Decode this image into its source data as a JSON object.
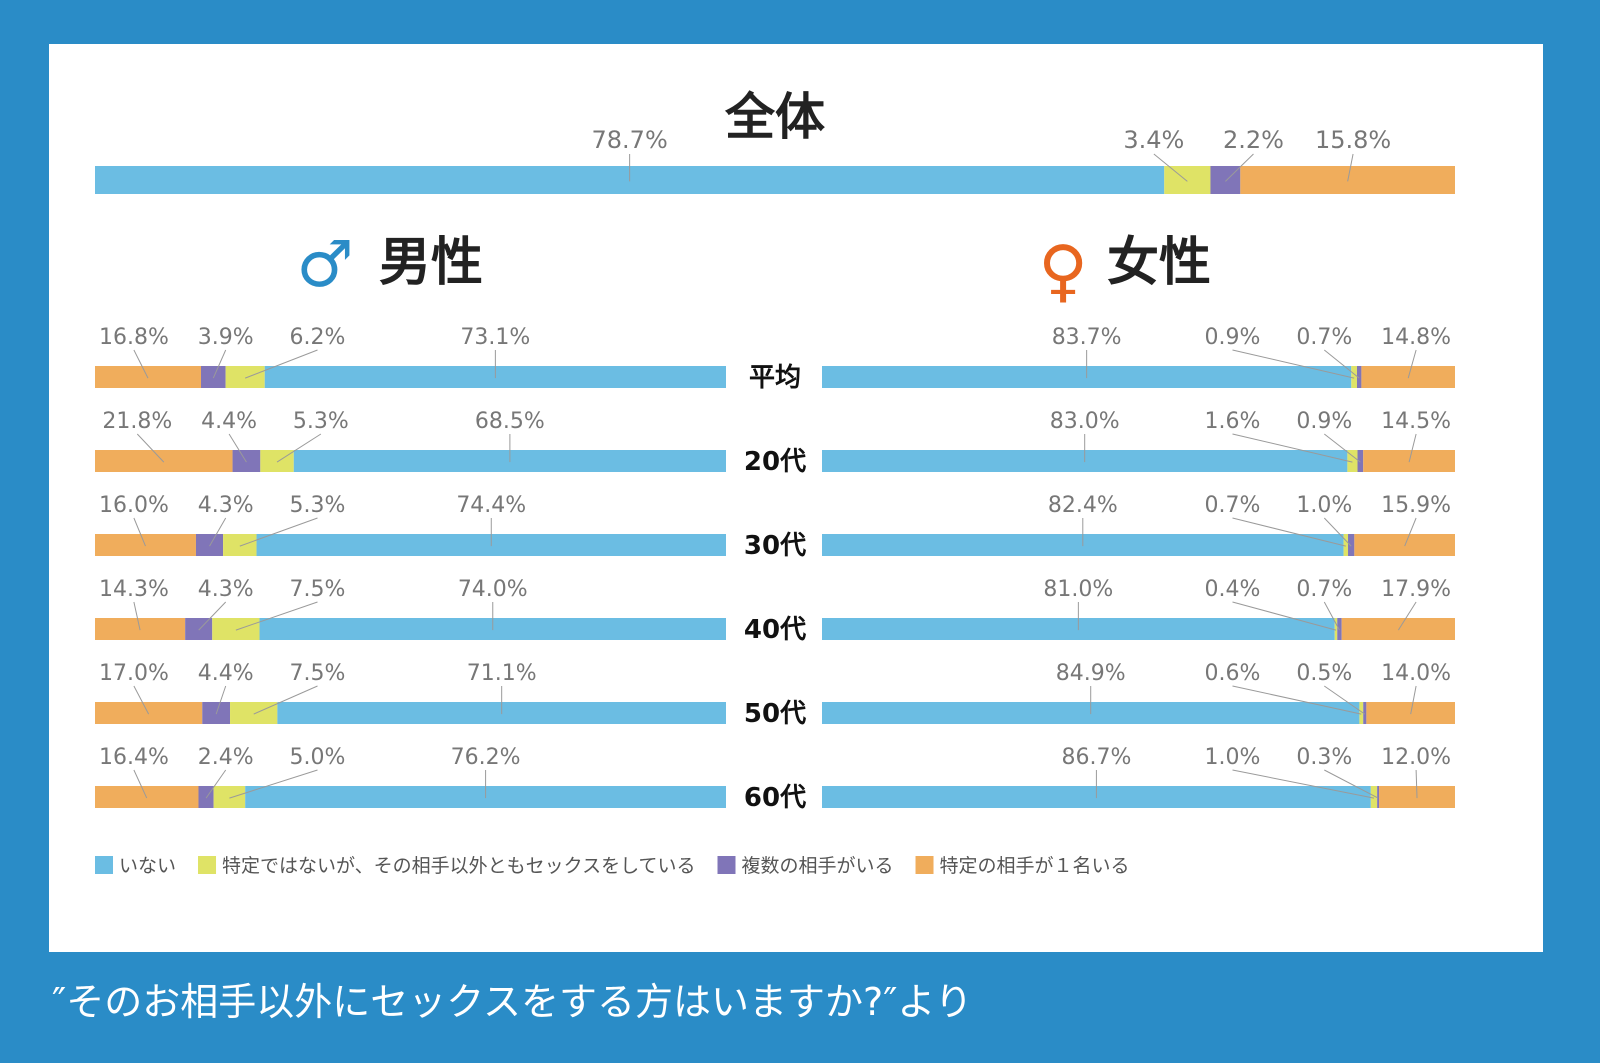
{
  "caption": "″そのお相手以外にセックスをする方はいますか?″より",
  "chart_data": {
    "type": "bar",
    "stacked": true,
    "orientation": "horizontal",
    "unit": "%",
    "category_names": [
      "いない",
      "特定ではないが、その相手以外ともセックスをしている",
      "複数の相手がいる",
      "特定の相手が１名いる"
    ],
    "colors": [
      "#6bbde3",
      "#dfe366",
      "#8075b8",
      "#f0ad5c"
    ],
    "overall": {
      "title": "全体",
      "values": [
        78.7,
        3.4,
        2.2,
        15.8
      ]
    },
    "male": {
      "title": "男性",
      "symbol": "♂",
      "symbol_color": "#2a8cc7",
      "rows": [
        {
          "values": [
            73.1,
            6.2,
            3.9,
            16.8
          ]
        },
        {
          "values": [
            68.5,
            5.3,
            4.4,
            21.8
          ]
        },
        {
          "values": [
            74.4,
            5.3,
            4.3,
            16.0
          ]
        },
        {
          "values": [
            74.0,
            7.5,
            4.3,
            14.3
          ]
        },
        {
          "values": [
            71.1,
            7.5,
            4.4,
            17.0
          ]
        },
        {
          "values": [
            76.2,
            5.0,
            2.4,
            16.4
          ]
        }
      ]
    },
    "female": {
      "title": "女性",
      "symbol": "♀",
      "symbol_color": "#e8661f",
      "rows": [
        {
          "values": [
            83.7,
            0.9,
            0.7,
            14.8
          ]
        },
        {
          "values": [
            83.0,
            1.6,
            0.9,
            14.5
          ]
        },
        {
          "values": [
            82.4,
            0.7,
            1.0,
            15.9
          ]
        },
        {
          "values": [
            81.0,
            0.4,
            0.7,
            17.9
          ]
        },
        {
          "values": [
            84.9,
            0.6,
            0.5,
            14.0
          ]
        },
        {
          "values": [
            86.7,
            1.0,
            0.3,
            12.0
          ]
        }
      ]
    },
    "row_labels": [
      "平均",
      "20代",
      "30代",
      "40代",
      "50代",
      "60代"
    ],
    "legend": [
      "いない",
      "特定ではないが、その相手以外ともセックスをしている",
      "複数の相手がいる",
      "特定の相手が１名いる"
    ]
  }
}
